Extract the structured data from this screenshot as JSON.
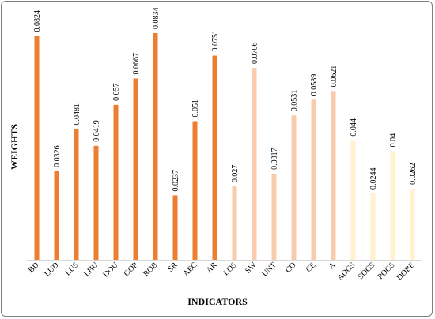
{
  "chart_data": {
    "type": "bar",
    "title": "",
    "xlabel": "INDICATORS",
    "ylabel": "WEIGHTS",
    "ylim": [
      0,
      0.0834
    ],
    "grid": false,
    "categories": [
      "BD",
      "LUD",
      "LUS",
      "LHU",
      "DOU",
      "GOP",
      "ROB",
      "SR",
      "AEC",
      "AR",
      "LOS",
      "SW",
      "UNT",
      "CO",
      "CE",
      "A",
      "AOGS",
      "SOGS",
      "POGS",
      "DOBE"
    ],
    "values": [
      0.0824,
      0.0326,
      0.0481,
      0.0419,
      0.057,
      0.0667,
      0.0834,
      0.0237,
      0.051,
      0.0751,
      0.027,
      0.0706,
      0.0317,
      0.0531,
      0.0589,
      0.0621,
      0.044,
      0.0244,
      0.04,
      0.0262
    ],
    "data_labels": [
      "0.0824",
      "0.0326",
      "0.0481",
      "0.0419",
      "0.057",
      "0.0667",
      "0.0834",
      "0.0237",
      "0.051",
      "0.0751",
      "0.027",
      "0.0706",
      "0.0317",
      "0.0531",
      "0.0589",
      "0.0621",
      "0.044",
      "0.0244",
      "0.04",
      "0.0262"
    ],
    "bar_colors": [
      "#ED7D31",
      "#ED7D31",
      "#ED7D31",
      "#ED7D31",
      "#ED7D31",
      "#ED7D31",
      "#ED7D31",
      "#ED7D31",
      "#ED7D31",
      "#ED7D31",
      "#F8CBAD",
      "#F8CBAD",
      "#F8CBAD",
      "#F8CBAD",
      "#F8CBAD",
      "#F8CBAD",
      "#FFF2CC",
      "#FFF2CC",
      "#FFF2CC",
      "#FFF2CC"
    ],
    "axis_color": "#D9D9D9"
  }
}
